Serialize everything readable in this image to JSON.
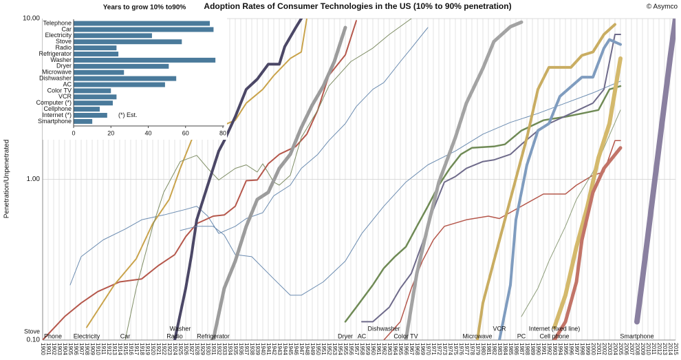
{
  "chart_data": [
    {
      "type": "line",
      "title": "Adoption Rates of Consumer Technologies in the US (10% to 90% penetration)",
      "credit": "© Asymco",
      "y_label": "Penetration/Unpenetrated",
      "log_y": true,
      "grid": true,
      "xlim": [
        1900,
        2015
      ],
      "xticks": [
        1900,
        1901,
        1902,
        1903,
        1904,
        1905,
        1906,
        1907,
        1908,
        1909,
        1910,
        1911,
        1912,
        1913,
        1914,
        1915,
        1916,
        1917,
        1918,
        1919,
        1920,
        1921,
        1922,
        1923,
        1924,
        1925,
        1926,
        1927,
        1928,
        1929,
        1930,
        1931,
        1932,
        1933,
        1934,
        1935,
        1936,
        1937,
        1938,
        1939,
        1940,
        1941,
        1942,
        1943,
        1944,
        1945,
        1946,
        1947,
        1948,
        1949,
        1950,
        1951,
        1952,
        1953,
        1954,
        1955,
        1956,
        1957,
        1958,
        1959,
        1960,
        1961,
        1962,
        1963,
        1964,
        1965,
        1966,
        1967,
        1968,
        1969,
        1970,
        1971,
        1972,
        1973,
        1974,
        1975,
        1976,
        1977,
        1978,
        1979,
        1980,
        1981,
        1982,
        1983,
        1984,
        1985,
        1986,
        1987,
        1988,
        1989,
        1990,
        1991,
        1992,
        1993,
        1994,
        1995,
        1996,
        1997,
        1998,
        1999,
        2000,
        2001,
        2002,
        2003,
        2004,
        2005,
        2006,
        2007,
        2008,
        2009,
        2010,
        2011,
        2012,
        2013,
        2014,
        2015
      ],
      "ylim": [
        0.1,
        10
      ],
      "yticks": [
        {
          "value": 0.1,
          "label": "0.10"
        },
        {
          "value": 1,
          "label": "1.00"
        },
        {
          "value": 10,
          "label": "10.00"
        }
      ],
      "series": [
        {
          "name": "Stove",
          "color": "#6a8bb0",
          "x": [
            1905,
            1907,
            1911,
            1915,
            1918,
            1922,
            1926,
            1928,
            1930,
            1932,
            1935,
            1937,
            1940,
            1942,
            1945,
            1947,
            1950,
            1952,
            1955,
            1957,
            1960,
            1962,
            1965,
            1967,
            1970
          ],
          "values": [
            0.22,
            0.33,
            0.42,
            0.49,
            0.56,
            0.6,
            0.65,
            0.68,
            0.59,
            0.46,
            0.51,
            0.57,
            0.62,
            0.79,
            0.92,
            1.17,
            1.43,
            1.74,
            2.22,
            2.84,
            3.63,
            4.0,
            5.4,
            6.55,
            8.8
          ]
        },
        {
          "name": "Phone",
          "color": "#b5574b",
          "x": [
            1900,
            1904,
            1907,
            1910,
            1914,
            1918,
            1921,
            1924,
            1926,
            1928,
            1931,
            1933,
            1935,
            1937,
            1939,
            1941,
            1943,
            1946,
            1948,
            1950,
            1952,
            1955,
            1957
          ],
          "values": [
            0.1,
            0.14,
            0.17,
            0.2,
            0.23,
            0.24,
            0.29,
            0.34,
            0.44,
            0.53,
            0.59,
            0.6,
            0.68,
            0.98,
            0.99,
            1.25,
            1.43,
            1.6,
            1.91,
            2.7,
            4.42,
            5.94,
            9.7
          ]
        },
        {
          "name": "Electricity",
          "color": "#c9a34b",
          "x": [
            1908,
            1913,
            1917,
            1920,
            1923,
            1925,
            1928,
            1930,
            1932,
            1935,
            1937,
            1940,
            1942,
            1945,
            1947,
            1948
          ],
          "values": [
            0.12,
            0.22,
            0.32,
            0.53,
            0.75,
            1.17,
            2.11,
            2.15,
            2.11,
            2.33,
            2.98,
            3.63,
            4.42,
            5.65,
            6.2,
            10
          ]
        },
        {
          "name": "Car",
          "color": "#7d8c63",
          "x": [
            1915,
            1917,
            1920,
            1922,
            1925,
            1928,
            1930,
            1932,
            1935,
            1937,
            1939,
            1940,
            1942,
            1943,
            1945,
            1947,
            1950,
            1952,
            1956,
            1960,
            1963,
            1967
          ],
          "values": [
            0.1,
            0.21,
            0.51,
            0.83,
            1.29,
            1.41,
            1.17,
            0.99,
            1.17,
            1.23,
            1.11,
            1.25,
            0.96,
            0.92,
            1.06,
            1.82,
            2.7,
            3.8,
            5.4,
            6.55,
            7.97,
            10
          ]
        },
        {
          "name": "Radio",
          "color": "#4b4766",
          "x": [
            1924,
            1926,
            1927,
            1928,
            1930,
            1932,
            1933,
            1935,
            1937,
            1939,
            1941,
            1943,
            1944,
            1946,
            1947
          ],
          "values": [
            0.1,
            0.21,
            0.33,
            0.56,
            0.92,
            1.5,
            1.74,
            2.45,
            3.63,
            4.2,
            5.2,
            5.2,
            6.7,
            8.8,
            10
          ]
        },
        {
          "name": "Washer",
          "color": "#6a8bb0",
          "x": [
            1925,
            1928,
            1931,
            1933,
            1935,
            1938,
            1942,
            1945,
            1947,
            1951,
            1955,
            1958,
            1962,
            1966,
            1970,
            1975,
            1980,
            1985,
            1990,
            1995,
            2000,
            2005
          ],
          "values": [
            0.48,
            0.51,
            0.51,
            0.45,
            0.34,
            0.33,
            0.24,
            0.19,
            0.19,
            0.23,
            0.31,
            0.46,
            0.68,
            0.96,
            1.23,
            1.5,
            1.91,
            2.26,
            2.57,
            2.98,
            3.45,
            4.08
          ]
        },
        {
          "name": "Refrigerator",
          "color": "#9c9c9c",
          "x": [
            1931,
            1933,
            1935,
            1937,
            1939,
            1941,
            1943,
            1945,
            1947,
            1949,
            1951,
            1953,
            1955
          ],
          "values": [
            0.1,
            0.21,
            0.31,
            0.51,
            0.75,
            0.83,
            1.17,
            1.43,
            2.1,
            2.9,
            3.8,
            5.4,
            8.8
          ]
        },
        {
          "name": "Dryer",
          "color": "#6f8a55",
          "x": [
            1955,
            1957,
            1960,
            1962,
            1964,
            1966,
            1968,
            1970,
            1972,
            1974,
            1976,
            1978,
            1982,
            1984,
            1987,
            1991,
            1995,
            1998,
            2001,
            2003,
            2005
          ],
          "values": [
            0.13,
            0.16,
            0.22,
            0.28,
            0.33,
            0.38,
            0.51,
            0.68,
            0.92,
            1.17,
            1.43,
            1.57,
            1.6,
            1.65,
            2.01,
            2.33,
            2.45,
            2.57,
            2.7,
            3.63,
            3.8
          ]
        },
        {
          "name": "AC",
          "color": "#6e6a8a",
          "x": [
            1958,
            1960,
            1963,
            1965,
            1967,
            1969,
            1971,
            1973,
            1975,
            1977,
            1980,
            1982,
            1985,
            1987,
            1990,
            1992,
            1996,
            2000,
            2002,
            2004,
            2005
          ],
          "values": [
            0.13,
            0.13,
            0.16,
            0.21,
            0.26,
            0.4,
            0.65,
            0.96,
            1.04,
            1.17,
            1.29,
            1.32,
            1.43,
            1.65,
            2.01,
            2.22,
            2.57,
            2.98,
            3.63,
            7.97,
            7.97
          ]
        },
        {
          "name": "Dishwasher",
          "color": "#b5574b",
          "x": [
            1962,
            1965,
            1967,
            1969,
            1971,
            1973,
            1977,
            1981,
            1983,
            1987,
            1991,
            1995,
            1997,
            2000,
            2002,
            2004,
            2005
          ],
          "values": [
            0.1,
            0.13,
            0.21,
            0.31,
            0.42,
            0.51,
            0.56,
            0.59,
            0.57,
            0.68,
            0.81,
            0.81,
            0.92,
            1.06,
            1.11,
            1.74,
            1.74
          ]
        },
        {
          "name": "Color TV",
          "color": "#a3a3a3",
          "x": [
            1966,
            1968,
            1970,
            1972,
            1975,
            1977,
            1980,
            1982,
            1985,
            1987
          ],
          "values": [
            0.1,
            0.26,
            0.51,
            0.96,
            1.82,
            2.98,
            4.9,
            7.2,
            8.9,
            9.5
          ]
        },
        {
          "name": "Microwave",
          "color": "#c9ad62",
          "x": [
            1979,
            1980,
            1982,
            1984,
            1986,
            1988,
            1990,
            1992,
            1996,
            1998,
            2000,
            2002,
            2004
          ],
          "values": [
            0.1,
            0.17,
            0.31,
            0.56,
            1.01,
            1.82,
            3.63,
            4.97,
            4.97,
            5.9,
            6.2,
            7.97,
            9.2
          ]
        },
        {
          "name": "VCR",
          "color": "#7f9cbf",
          "x": [
            1983,
            1985,
            1986,
            1988,
            1990,
            1992,
            1994,
            1998,
            2000,
            2002,
            2003,
            2005
          ],
          "values": [
            0.1,
            0.22,
            0.56,
            1.23,
            2.01,
            2.22,
            3.28,
            4.32,
            4.32,
            6.55,
            7.4,
            6.9
          ]
        },
        {
          "name": "PC",
          "color": "#8c9c78",
          "x": [
            1987,
            1990,
            1992,
            1995,
            1997,
            2000,
            2002,
            2005
          ],
          "values": [
            0.14,
            0.21,
            0.31,
            0.51,
            0.75,
            1.11,
            1.57,
            2.7
          ]
        },
        {
          "name": "Cell phone",
          "color": "#d4b96c",
          "x": [
            1993,
            1995,
            1997,
            1999,
            2001,
            2003,
            2005
          ],
          "values": [
            0.12,
            0.19,
            0.38,
            0.68,
            1.36,
            2.22,
            5.65
          ]
        },
        {
          "name": "Internet (fixed line)",
          "color": "#c27468",
          "x": [
            1993,
            1995,
            1997,
            1998,
            2000,
            2002,
            2005
          ],
          "values": [
            0.1,
            0.13,
            0.23,
            0.42,
            0.83,
            1.17,
            1.57
          ]
        },
        {
          "name": "Smartphone",
          "color": "#8a80a0",
          "x": [
            2008,
            2009,
            2010,
            2011,
            2012,
            2013,
            2014,
            2015
          ],
          "values": [
            0.13,
            0.24,
            0.45,
            0.85,
            1.59,
            2.98,
            5.6,
            10
          ]
        }
      ]
    },
    {
      "type": "bar",
      "orientation": "horizontal",
      "title": "Years to grow 10% to90%",
      "annotation": "(*) Est.",
      "color": "#4a7a9b",
      "categories": [
        "Telephone",
        "Car",
        "Electricity",
        "Stove",
        "Radio",
        "Refrigerator",
        "Washer",
        "Dryer",
        "Microwave",
        "Dishwasher",
        "AC",
        "Color TV",
        "VCR",
        "Computer (*)",
        "Cellphone",
        "Internet (*)",
        "Smartphone"
      ],
      "values": [
        73,
        75,
        42,
        58,
        23,
        24,
        76,
        51,
        27,
        55,
        49,
        20,
        23,
        21,
        14,
        18,
        10
      ],
      "xlim": [
        0,
        80
      ],
      "xticks": [
        0,
        20,
        40,
        60,
        80
      ]
    }
  ]
}
